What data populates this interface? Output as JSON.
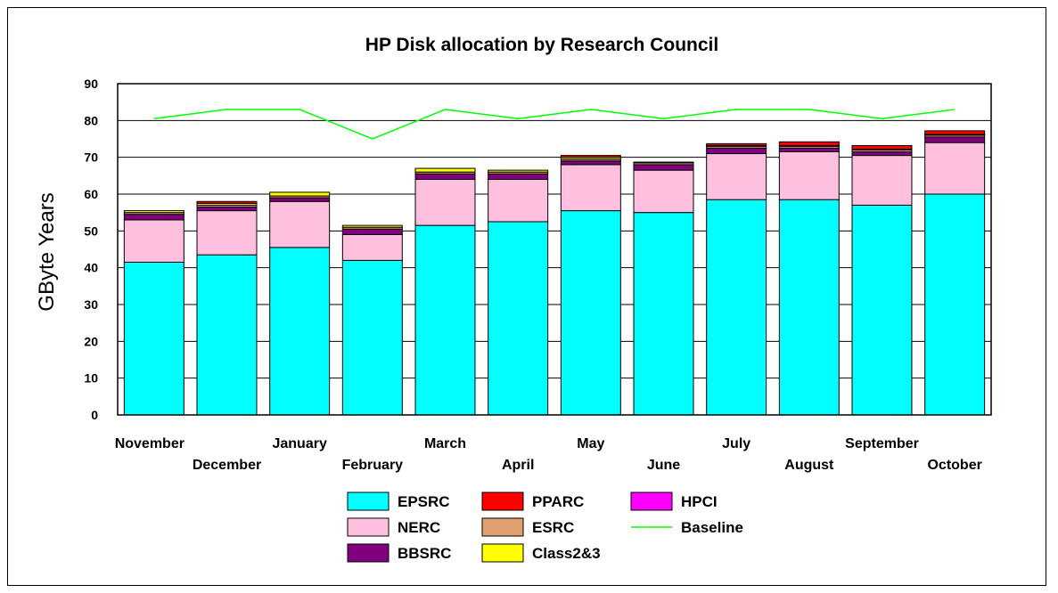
{
  "chart_data": {
    "type": "bar",
    "stacked": true,
    "title": "HP Disk allocation by Research Council",
    "xlabel": "",
    "ylabel": "GByte Years",
    "ylim": [
      0,
      90
    ],
    "yticks": [
      0,
      10,
      20,
      30,
      40,
      50,
      60,
      70,
      80,
      90
    ],
    "grid": "horizontal",
    "legend_position": "bottom",
    "categories": [
      "November",
      "December",
      "January",
      "February",
      "March",
      "April",
      "May",
      "June",
      "July",
      "August",
      "September",
      "October"
    ],
    "series": [
      {
        "name": "EPSRC",
        "color": "#00FFFF",
        "values": [
          41.5,
          43.5,
          45.5,
          42.0,
          51.5,
          52.5,
          55.5,
          55.0,
          58.5,
          58.5,
          57.0,
          60.0
        ]
      },
      {
        "name": "NERC",
        "color": "#FFC0E0",
        "values": [
          11.5,
          12.0,
          12.5,
          7.0,
          12.5,
          11.5,
          12.5,
          11.5,
          12.5,
          13.0,
          13.5,
          14.0
        ]
      },
      {
        "name": "BBSRC",
        "color": "#800080",
        "values": [
          1.5,
          1.0,
          1.0,
          1.5,
          1.5,
          1.5,
          1.0,
          1.5,
          1.5,
          1.0,
          1.0,
          1.5
        ]
      },
      {
        "name": "ESRC",
        "color": "#E0A070",
        "values": [
          0.5,
          0.5,
          0.5,
          0.5,
          0.5,
          0.5,
          0.5,
          0.5,
          0.5,
          0.5,
          0.5,
          0.5
        ]
      },
      {
        "name": "Class2&3",
        "color": "#FFFF00",
        "values": [
          0.5,
          0.5,
          1.0,
          0.5,
          1.0,
          0.5,
          0.5,
          0.2,
          0.2,
          0.2,
          0.2,
          0.2
        ]
      },
      {
        "name": "PPARC",
        "color": "#FF0000",
        "values": [
          0.0,
          0.5,
          0.0,
          0.0,
          0.0,
          0.0,
          0.5,
          0.0,
          0.5,
          1.0,
          1.0,
          1.0
        ]
      },
      {
        "name": "HPCI",
        "color": "#FF00FF",
        "values": [
          0,
          0,
          0,
          0,
          0,
          0,
          0,
          0,
          0,
          0,
          0,
          0
        ]
      }
    ],
    "lines": [
      {
        "name": "Baseline",
        "color": "#00FF00",
        "values": [
          80.5,
          83.0,
          83.0,
          75.0,
          83.0,
          80.5,
          83.0,
          80.5,
          83.0,
          83.0,
          80.5,
          83.0
        ]
      }
    ],
    "legend": [
      [
        "EPSRC",
        "PPARC",
        "HPCI"
      ],
      [
        "NERC",
        "ESRC",
        "Baseline"
      ],
      [
        "BBSRC",
        "Class2&3"
      ]
    ]
  }
}
